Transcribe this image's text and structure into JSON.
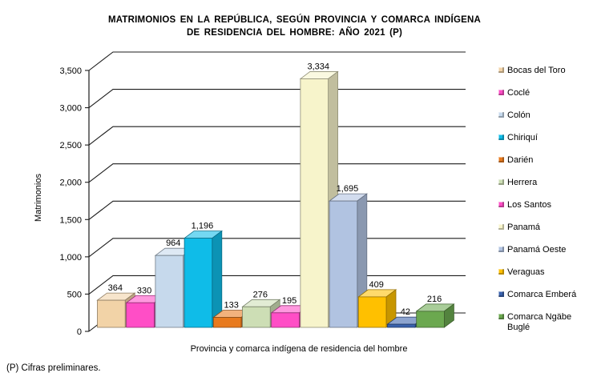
{
  "title": {
    "line1": "MATRIMONIOS EN LA REPÚBLICA, SEGÚN PROVINCIA Y COMARCA INDÍGENA",
    "line2": "DE RESIDENCIA DEL HOMBRE: AÑO 2021 (P)"
  },
  "footnote": "(P) Cifras preliminares.",
  "chart_data": {
    "type": "bar",
    "style": "3d-column",
    "title": "MATRIMONIOS EN LA REPÚBLICA, SEGÚN PROVINCIA Y COMARCA INDÍGENA DE RESIDENCIA DEL HOMBRE: AÑO 2021 (P)",
    "xlabel": "Provincia y comarca indígena de residencia del hombre",
    "ylabel": "Matrimonios",
    "ylim": [
      0,
      3500
    ],
    "ytick_labels": [
      "0",
      "500",
      "1,000",
      "1,500",
      "2,000",
      "2,500",
      "3,000",
      "3,500"
    ],
    "grid": true,
    "legend_position": "right",
    "categories": [
      "Bocas del Toro",
      "Coclé",
      "Colón",
      "Chiriquí",
      "Darién",
      "Herrera",
      "Los Santos",
      "Panamá",
      "Panamá Oeste",
      "Veraguas",
      "Comarca Emberá",
      "Comarca Ngäbe Buglé"
    ],
    "values": [
      364,
      330,
      964,
      1196,
      133,
      276,
      195,
      3334,
      1695,
      409,
      42,
      216
    ],
    "colors": [
      "#F2D3A7",
      "#FF4EC6",
      "#C6D9EC",
      "#0FBCE8",
      "#E87A1E",
      "#CDDEB5",
      "#FF4EC6",
      "#F7F4CB",
      "#B1C3E1",
      "#FFC000",
      "#3A62AD",
      "#6BA84F"
    ],
    "grid_color": "#1c1c1c"
  }
}
